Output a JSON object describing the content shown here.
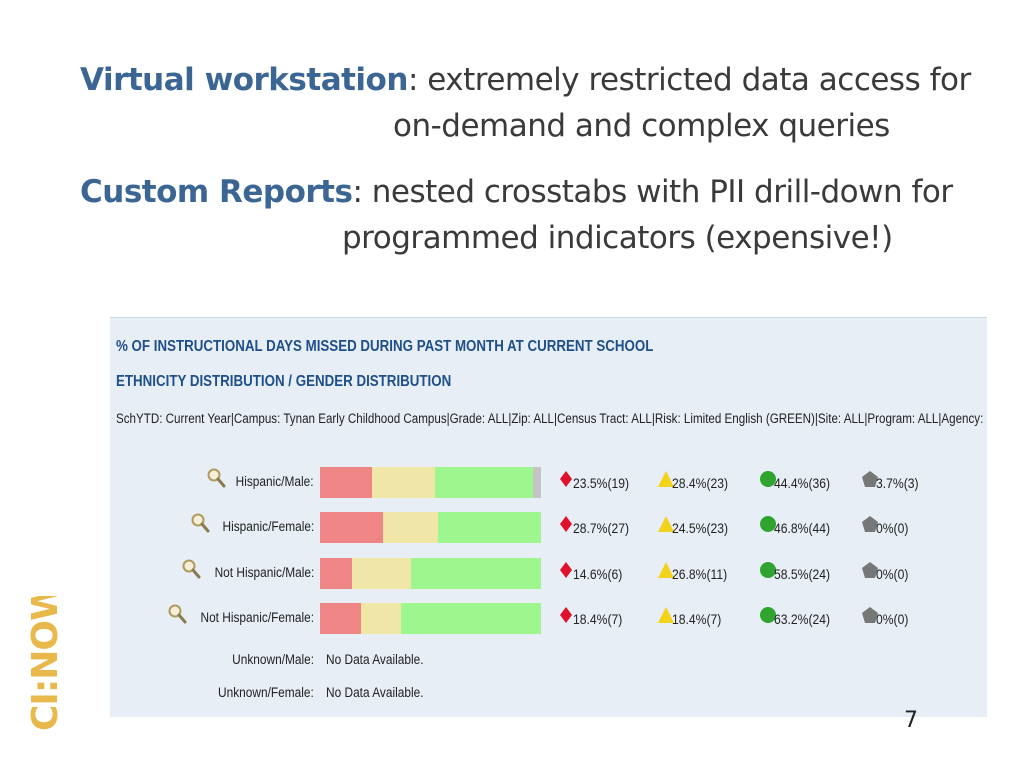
{
  "bullets": [
    {
      "term": "Virtual workstation",
      "sep": ":",
      "line1": " extremely restricted data access for",
      "line2": "on-demand and complex queries"
    },
    {
      "term": "Custom Reports",
      "sep": ":",
      "line1": " nested crosstabs with PII drill-down for",
      "line2": "programmed indicators (expensive!)"
    }
  ],
  "report": {
    "title": "% OF INSTRUCTIONAL DAYS MISSED DURING PAST MONTH AT CURRENT SCHOOL",
    "subtitle": "ETHNICITY DISTRIBUTION / GENDER DISTRIBUTION",
    "filter": "SchYTD: Current Year|Campus: Tynan Early Childhood Campus|Grade: ALL|Zip: ALL|Census Tract: ALL|Risk: Limited English (GREEN)|Site: ALL|Program: ALL|Agency:",
    "no_data_rows": [
      {
        "label": "Unknown/Male:",
        "text": "No Data Available."
      },
      {
        "label": "Unknown/Female:",
        "text": "No Data Available."
      }
    ]
  },
  "chart_data": {
    "type": "bar",
    "stacked": true,
    "orientation": "horizontal",
    "categories": [
      "Hispanic/Male:",
      "Hispanic/Female:",
      "Not Hispanic/Male:",
      "Not Hispanic/Female:"
    ],
    "series": [
      {
        "color": "#f08585",
        "icon": "red-diamond-icon",
        "values": [
          23.5,
          28.7,
          14.6,
          18.4
        ],
        "counts": [
          19,
          27,
          6,
          7
        ],
        "labels": [
          "23.5%(19)",
          "28.7%(27)",
          "14.6%(6)",
          "18.4%(7)"
        ]
      },
      {
        "color": "#efe6a8",
        "icon": "yellow-triangle-icon",
        "values": [
          28.4,
          24.5,
          26.8,
          18.4
        ],
        "counts": [
          23,
          23,
          11,
          7
        ],
        "labels": [
          "28.4%(23)",
          "24.5%(23)",
          "26.8%(11)",
          "18.4%(7)"
        ]
      },
      {
        "color": "#9ef78e",
        "icon": "green-circle-icon",
        "values": [
          44.4,
          46.8,
          58.5,
          63.2
        ],
        "counts": [
          36,
          44,
          24,
          24
        ],
        "labels": [
          "44.4%(36)",
          "46.8%(44)",
          "58.5%(24)",
          "63.2%(24)"
        ]
      },
      {
        "color": "#c4c4c4",
        "icon": "gray-pentagon-icon",
        "values": [
          3.7,
          0,
          0,
          0
        ],
        "counts": [
          3,
          0,
          0,
          0
        ],
        "labels": [
          "3.7%(3)",
          "0%(0)",
          "0%(0)",
          "0%(0)"
        ]
      }
    ],
    "xlim": [
      0,
      100
    ],
    "legend": "none",
    "grid": false
  },
  "logo": {
    "text": "CI:NOW",
    "color": "#e8b84a"
  },
  "page_number": "7"
}
